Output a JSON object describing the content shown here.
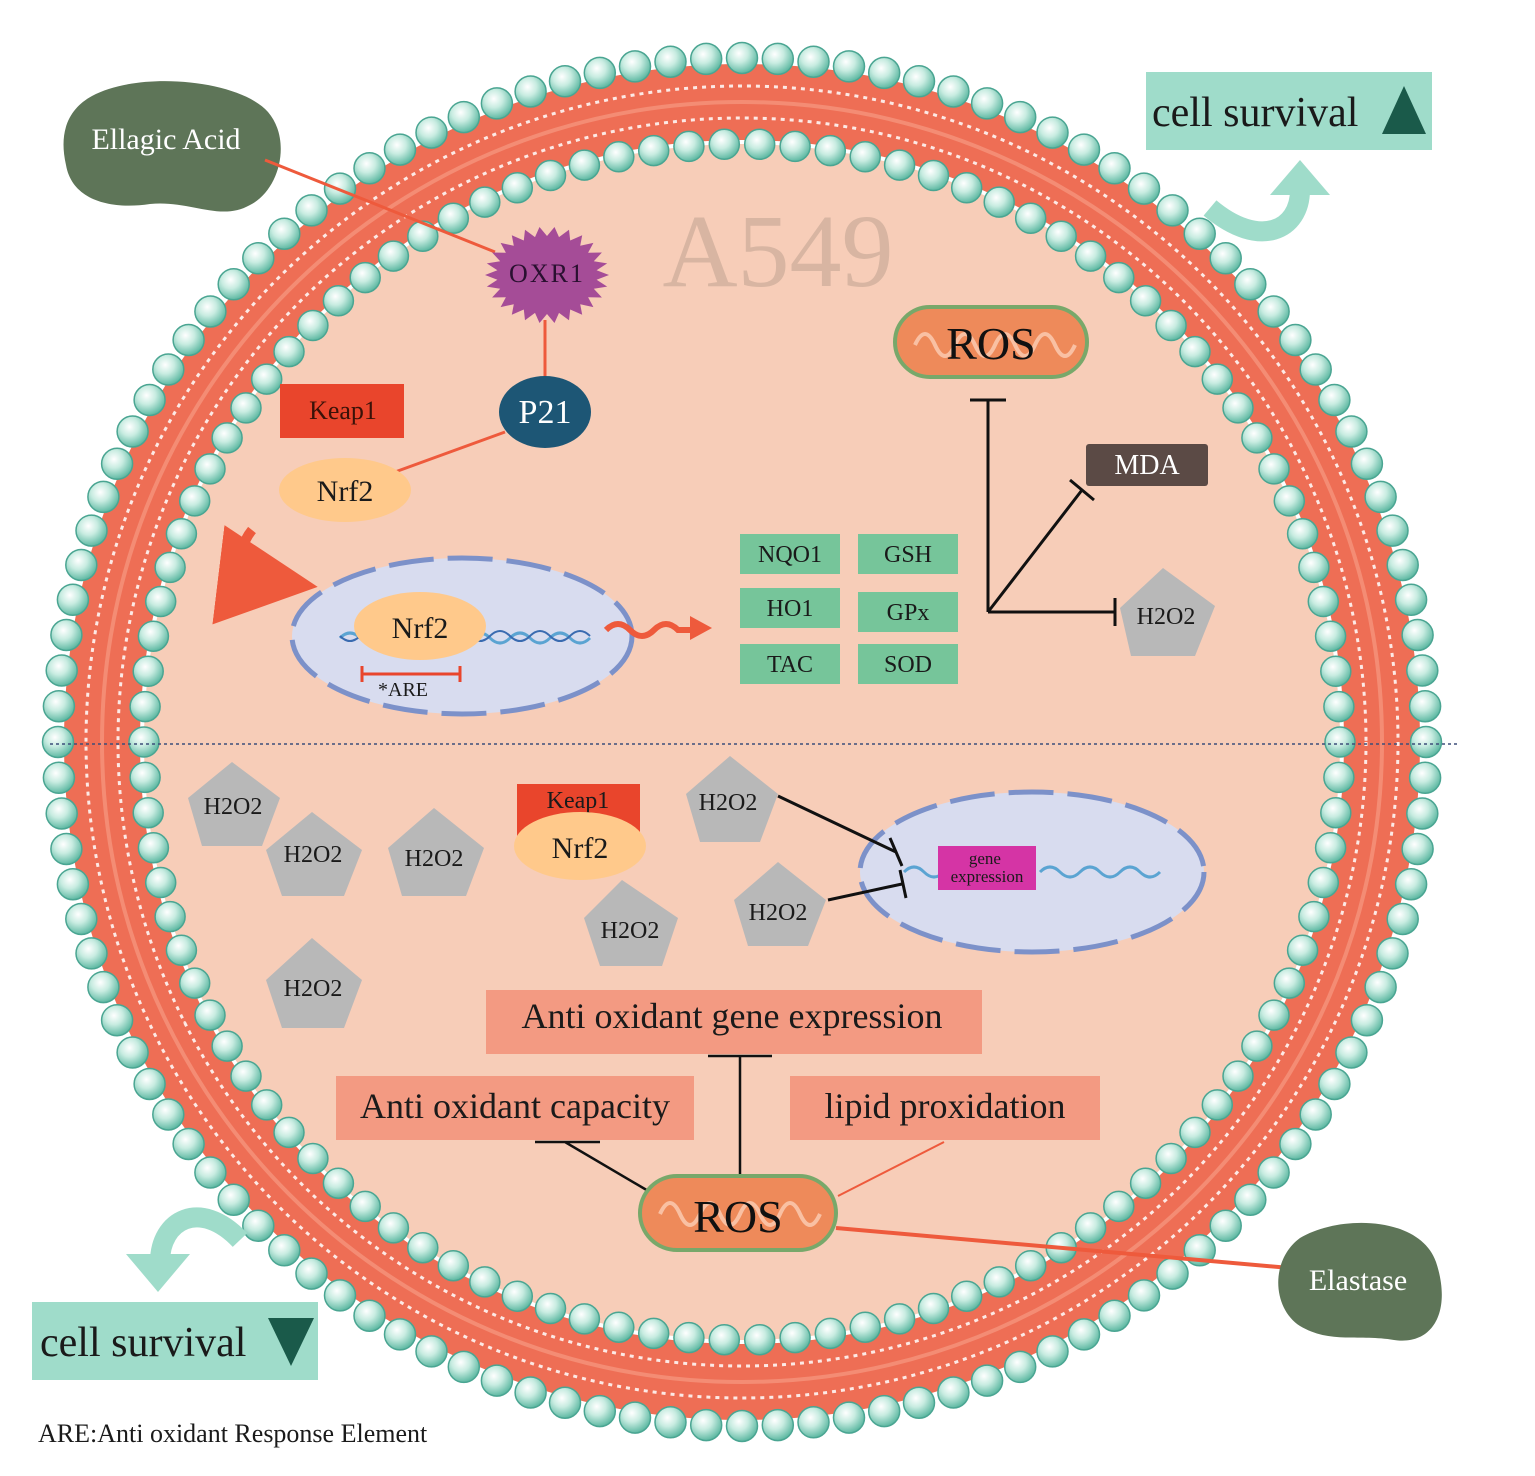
{
  "cell_label": "A549",
  "top_section": {
    "inducer": "Ellagic Acid",
    "receptor": "OXR1",
    "p21": "P21",
    "keap1": "Keap1",
    "nrf2_cytoplasm": "Nrf2",
    "nrf2_nucleus": "Nrf2",
    "are_label": "*ARE",
    "ros": "ROS",
    "mda": "MDA",
    "h2o2": "H2O2",
    "enzymes": [
      "NQO1",
      "GSH",
      "HO1",
      "GPx",
      "TAC",
      "SOD"
    ],
    "survival": "cell survival"
  },
  "bottom_section": {
    "h2o2_labels": [
      "H2O2",
      "H2O2",
      "H2O2",
      "H2O2",
      "H2O2",
      "H2O2",
      "H2O2"
    ],
    "keap1": "Keap1",
    "nrf2": "Nrf2",
    "gene_expression": "gene expression",
    "antioxidant_gene_expression": "Anti oxidant gene expression",
    "antioxidant_capacity": "Anti oxidant capacity",
    "lipid_peroxidation": "lipid proxidation",
    "ros": "ROS",
    "inducer": "Elastase",
    "survival": "cell survival"
  },
  "footnote": "ARE:Anti oxidant Response Element",
  "colors": {
    "cell_fill": "#f7cdb8",
    "membrane_red": "#ee6e55",
    "lipid_head": "#7ccfbb",
    "nucleus": "#d8dcef",
    "enzyme_box": "#76c59a",
    "h2o2_gray": "#b8b8b8",
    "inducer_green": "#5e7558",
    "survival_box": "#9fdcca",
    "outcome_box": "#f39a82",
    "p21_blue": "#1d5675",
    "oxr1_purple": "#a54c97",
    "keap1_red": "#e9452c",
    "nrf2_orange": "#ffc98b",
    "mda_brown": "#5b4a45",
    "gene_magenta": "#d534a5"
  }
}
